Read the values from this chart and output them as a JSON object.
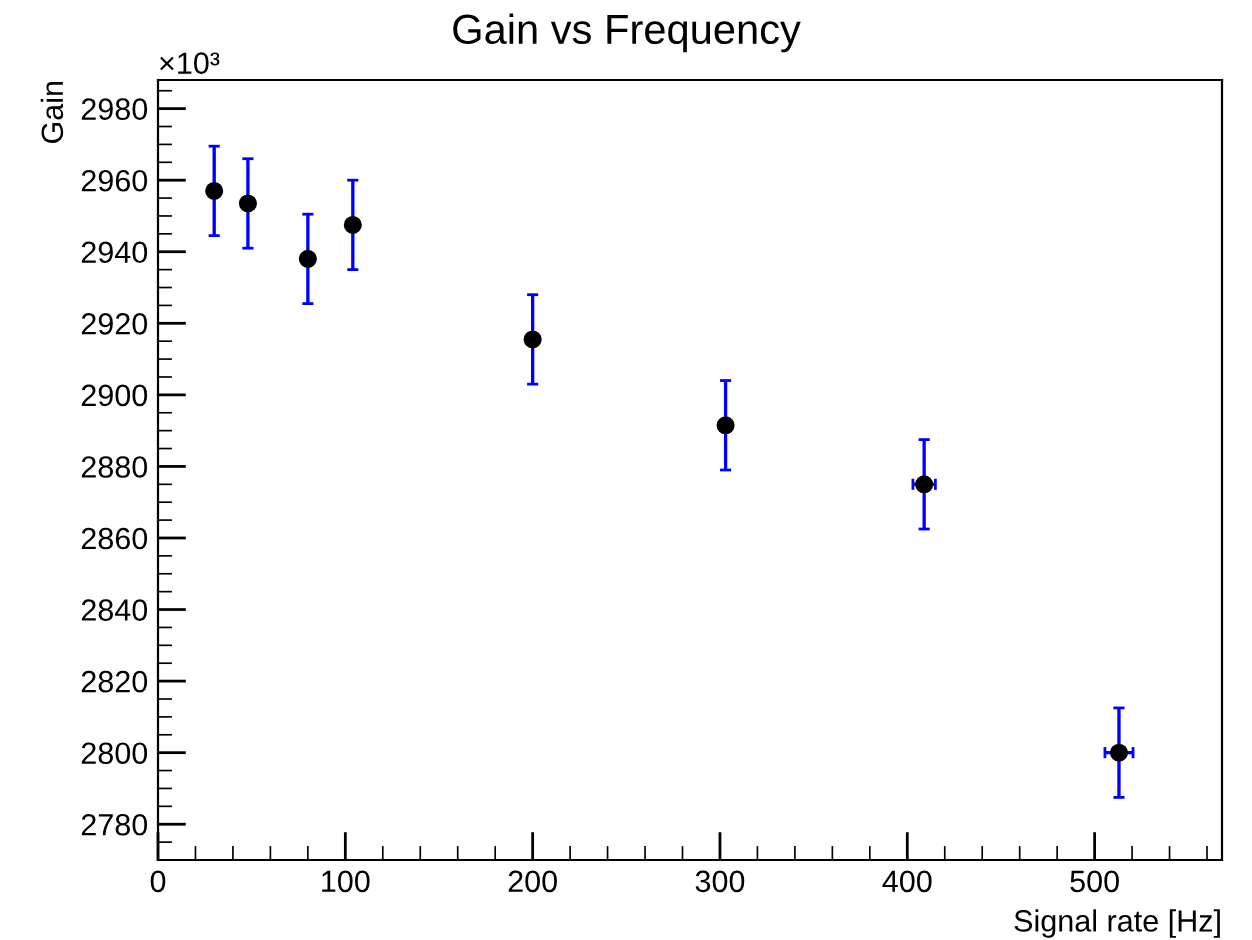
{
  "chart_data": {
    "type": "scatter",
    "title": "Gain vs Frequency",
    "xlabel": "Signal rate [Hz]",
    "ylabel": "Gain",
    "annotations": [
      "×10³"
    ],
    "x": [
      30,
      48,
      80,
      104,
      200,
      303,
      409,
      513
    ],
    "series": [
      {
        "color": "#000000",
        "values": [
          2957,
          2953.5,
          2938,
          2947.5,
          2915.5,
          2891.5,
          2875,
          2800
        ],
        "errors": [
          12.5,
          12.5,
          12.5,
          12.5,
          12.5,
          12.5,
          12.5,
          12.5
        ],
        "xerrors": [
          null,
          null,
          null,
          null,
          null,
          null,
          6,
          7.5
        ]
      }
    ],
    "xlim": [
      0,
      568
    ],
    "ylim": [
      2770,
      2988
    ],
    "xticks": [
      0,
      100,
      200,
      300,
      400,
      500
    ],
    "yticks": [
      2780,
      2800,
      2820,
      2840,
      2860,
      2880,
      2900,
      2920,
      2940,
      2960,
      2980
    ],
    "marker": "circle",
    "grid": false,
    "legend": false
  }
}
